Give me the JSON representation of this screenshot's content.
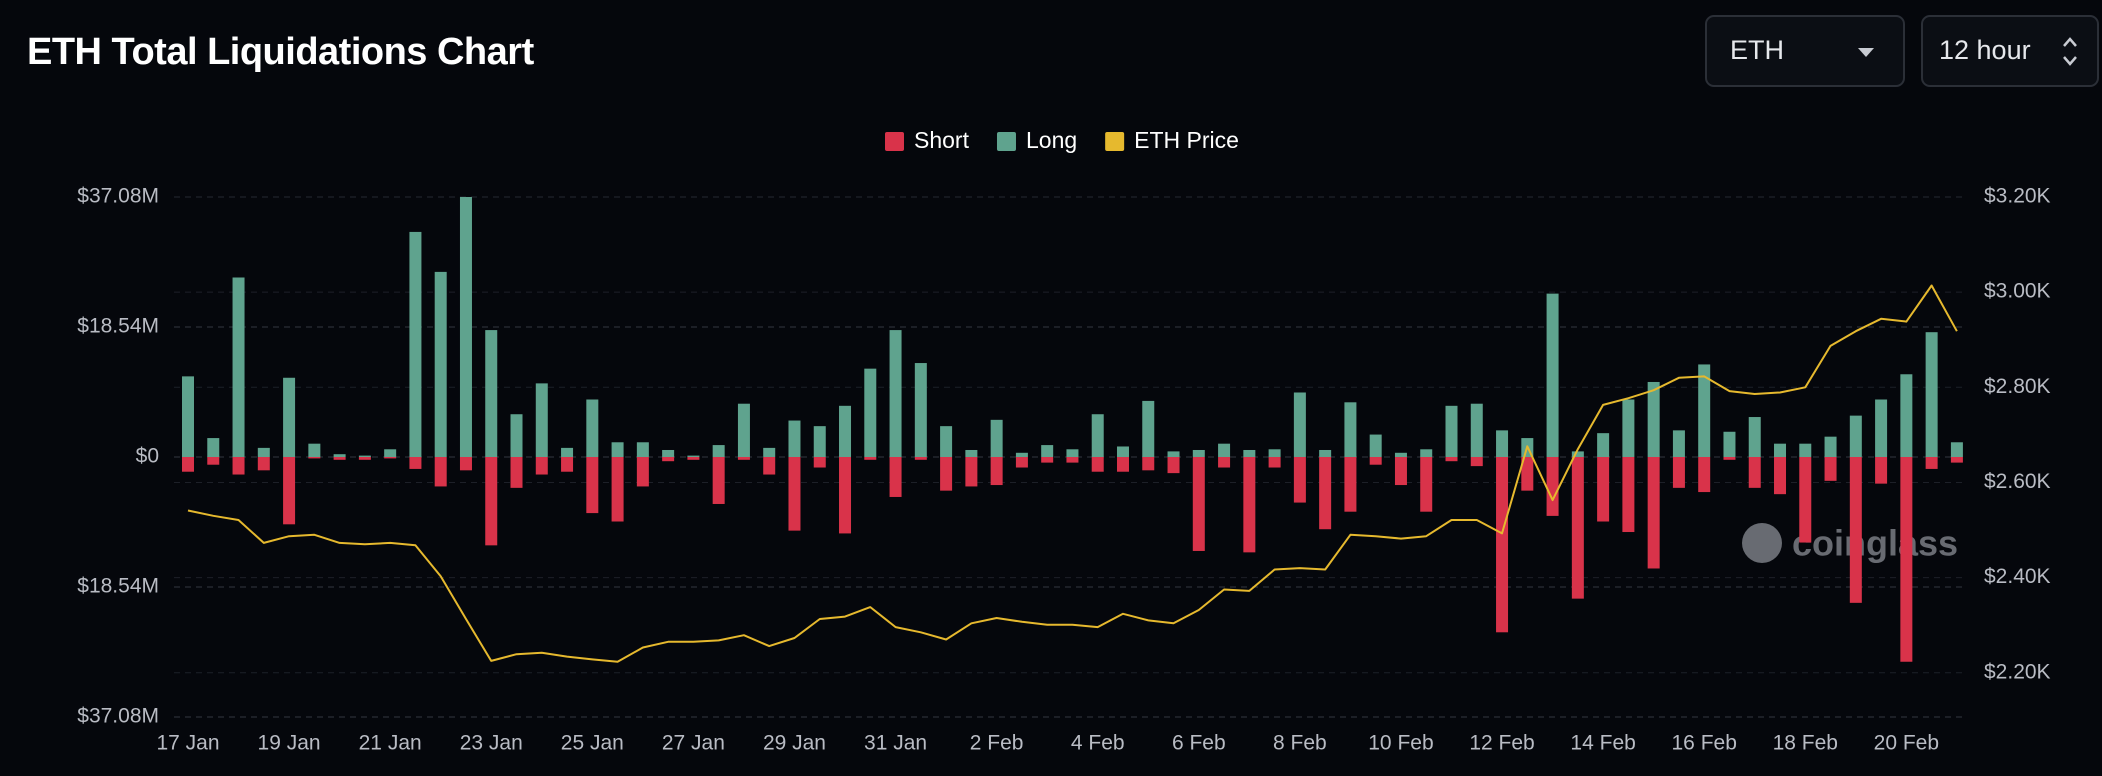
{
  "chart_data": {
    "type": "bar",
    "title": "ETH Total Liquidations Chart",
    "controls": [
      "ETH",
      "12 hour"
    ],
    "watermark": "coinglass",
    "categories": [
      "17 Jan",
      null,
      null,
      null,
      "19 Jan",
      null,
      null,
      null,
      "21 Jan",
      null,
      null,
      null,
      "23 Jan",
      null,
      null,
      null,
      "25 Jan",
      null,
      null,
      null,
      "27 Jan",
      null,
      null,
      null,
      "29 Jan",
      null,
      null,
      null,
      "31 Jan",
      null,
      null,
      null,
      "2 Feb",
      null,
      null,
      null,
      "4 Feb",
      null,
      null,
      null,
      "6 Feb",
      null,
      null,
      null,
      "8 Feb",
      null,
      null,
      null,
      "10 Feb",
      null,
      null,
      null,
      "12 Feb",
      null,
      null,
      null,
      "14 Feb",
      null,
      null,
      null,
      "16 Feb",
      null,
      null,
      null,
      "18 Feb",
      null,
      null,
      null,
      "20 Feb",
      null,
      null
    ],
    "series": [
      {
        "name": "Short",
        "type": "bar",
        "color": "#d9334a",
        "values": [
          -2.1,
          -1.1,
          -2.5,
          -1.9,
          -9.6,
          -0.2,
          -0.4,
          -0.4,
          -0.2,
          -1.7,
          -4.2,
          -1.9,
          -12.6,
          -4.4,
          -2.5,
          -2.1,
          -8.0,
          -9.2,
          -4.2,
          -0.6,
          -0.4,
          -6.7,
          -0.4,
          -2.5,
          -10.5,
          -1.5,
          -10.9,
          -0.4,
          -5.7,
          -0.4,
          -4.8,
          -4.2,
          -4.0,
          -1.5,
          -0.8,
          -0.8,
          -2.1,
          -2.1,
          -1.9,
          -2.3,
          -13.4,
          -1.5,
          -13.6,
          -1.5,
          -6.5,
          -10.3,
          -7.8,
          -1.1,
          -4.0,
          -7.8,
          -0.6,
          -1.3,
          -25.0,
          -4.8,
          -8.4,
          -20.2,
          -9.2,
          -10.7,
          -15.9,
          -4.4,
          -5.0,
          -0.4,
          -4.4,
          -5.3,
          -12.2,
          -3.4,
          -20.8,
          -3.8,
          -29.2,
          -1.7,
          -0.8
        ]
      },
      {
        "name": "Long",
        "type": "bar",
        "color": "#5fa38e",
        "values": [
          11.5,
          2.7,
          25.6,
          1.3,
          11.3,
          1.9,
          0.4,
          0.2,
          1.1,
          32.1,
          26.4,
          37.08,
          18.1,
          6.1,
          10.5,
          1.3,
          8.2,
          2.1,
          2.1,
          1.0,
          0.2,
          1.7,
          7.6,
          1.3,
          5.2,
          4.4,
          7.3,
          12.6,
          18.1,
          13.4,
          4.4,
          1.0,
          5.3,
          0.6,
          1.7,
          1.1,
          6.1,
          1.5,
          8.0,
          0.8,
          1.0,
          1.9,
          1.0,
          1.1,
          9.2,
          1.0,
          7.8,
          3.2,
          0.6,
          1.1,
          7.3,
          7.6,
          3.8,
          2.7,
          23.3,
          0.8,
          3.4,
          8.2,
          10.7,
          3.8,
          13.2,
          3.6,
          5.7,
          1.9,
          1.9,
          2.9,
          5.9,
          8.2,
          11.8,
          17.8,
          2.1
        ]
      },
      {
        "name": "ETH Price",
        "type": "line",
        "axis": "y2",
        "color": "#e6b92e",
        "values": [
          2541,
          2530,
          2521,
          2473,
          2487,
          2490,
          2473,
          2470,
          2473,
          2468,
          2403,
          2313,
          2225,
          2239,
          2242,
          2234,
          2228,
          2223,
          2253,
          2265,
          2265,
          2268,
          2279,
          2256,
          2273,
          2313,
          2318,
          2338,
          2296,
          2285,
          2270,
          2304,
          2315,
          2307,
          2301,
          2301,
          2296,
          2324,
          2310,
          2304,
          2332,
          2375,
          2372,
          2417,
          2420,
          2417,
          2490,
          2487,
          2482,
          2487,
          2521,
          2521,
          2493,
          2676,
          2563,
          2670,
          2763,
          2777,
          2794,
          2820,
          2823,
          2792,
          2786,
          2789,
          2800,
          2887,
          2918,
          2944,
          2938,
          3014,
          2918
        ]
      }
    ],
    "ylim": [
      -37.08,
      37.08
    ],
    "yticks": [
      {
        "value": 37.08,
        "label": "$37.08M"
      },
      {
        "value": 18.54,
        "label": "$18.54M"
      },
      {
        "value": 0,
        "label": "$0"
      },
      {
        "value": -18.54,
        "label": "$18.54M"
      },
      {
        "value": -37.08,
        "label": "$37.08M"
      }
    ],
    "y2lim": [
      2107,
      3200
    ],
    "y2ticks": [
      {
        "value": 3200,
        "label": "$3.20K"
      },
      {
        "value": 3000,
        "label": "$3.00K"
      },
      {
        "value": 2800,
        "label": "$2.80K"
      },
      {
        "value": 2600,
        "label": "$2.60K"
      },
      {
        "value": 2400,
        "label": "$2.40K"
      },
      {
        "value": 2200,
        "label": "$2.20K"
      }
    ],
    "grid": true,
    "legend": "top"
  }
}
